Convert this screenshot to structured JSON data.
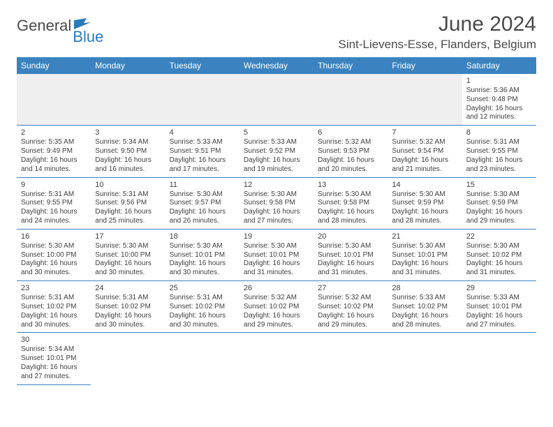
{
  "logo": {
    "general": "General",
    "blue": "Blue"
  },
  "title": "June 2024",
  "location": "Sint-Lievens-Esse, Flanders, Belgium",
  "colors": {
    "header_bg": "#3b83c0",
    "header_text": "#ffffff",
    "border": "#3b83c0",
    "text": "#404040",
    "logo_gray": "#4a4a4a",
    "logo_blue": "#2a7ab8",
    "blank_bg": "#efefef"
  },
  "weekdays": [
    "Sunday",
    "Monday",
    "Tuesday",
    "Wednesday",
    "Thursday",
    "Friday",
    "Saturday"
  ],
  "days": {
    "1": {
      "sunrise": "5:36 AM",
      "sunset": "9:48 PM",
      "daylight": "16 hours and 12 minutes."
    },
    "2": {
      "sunrise": "5:35 AM",
      "sunset": "9:49 PM",
      "daylight": "16 hours and 14 minutes."
    },
    "3": {
      "sunrise": "5:34 AM",
      "sunset": "9:50 PM",
      "daylight": "16 hours and 16 minutes."
    },
    "4": {
      "sunrise": "5:33 AM",
      "sunset": "9:51 PM",
      "daylight": "16 hours and 17 minutes."
    },
    "5": {
      "sunrise": "5:33 AM",
      "sunset": "9:52 PM",
      "daylight": "16 hours and 19 minutes."
    },
    "6": {
      "sunrise": "5:32 AM",
      "sunset": "9:53 PM",
      "daylight": "16 hours and 20 minutes."
    },
    "7": {
      "sunrise": "5:32 AM",
      "sunset": "9:54 PM",
      "daylight": "16 hours and 21 minutes."
    },
    "8": {
      "sunrise": "5:31 AM",
      "sunset": "9:55 PM",
      "daylight": "16 hours and 23 minutes."
    },
    "9": {
      "sunrise": "5:31 AM",
      "sunset": "9:55 PM",
      "daylight": "16 hours and 24 minutes."
    },
    "10": {
      "sunrise": "5:31 AM",
      "sunset": "9:56 PM",
      "daylight": "16 hours and 25 minutes."
    },
    "11": {
      "sunrise": "5:30 AM",
      "sunset": "9:57 PM",
      "daylight": "16 hours and 26 minutes."
    },
    "12": {
      "sunrise": "5:30 AM",
      "sunset": "9:58 PM",
      "daylight": "16 hours and 27 minutes."
    },
    "13": {
      "sunrise": "5:30 AM",
      "sunset": "9:58 PM",
      "daylight": "16 hours and 28 minutes."
    },
    "14": {
      "sunrise": "5:30 AM",
      "sunset": "9:59 PM",
      "daylight": "16 hours and 28 minutes."
    },
    "15": {
      "sunrise": "5:30 AM",
      "sunset": "9:59 PM",
      "daylight": "16 hours and 29 minutes."
    },
    "16": {
      "sunrise": "5:30 AM",
      "sunset": "10:00 PM",
      "daylight": "16 hours and 30 minutes."
    },
    "17": {
      "sunrise": "5:30 AM",
      "sunset": "10:00 PM",
      "daylight": "16 hours and 30 minutes."
    },
    "18": {
      "sunrise": "5:30 AM",
      "sunset": "10:01 PM",
      "daylight": "16 hours and 30 minutes."
    },
    "19": {
      "sunrise": "5:30 AM",
      "sunset": "10:01 PM",
      "daylight": "16 hours and 31 minutes."
    },
    "20": {
      "sunrise": "5:30 AM",
      "sunset": "10:01 PM",
      "daylight": "16 hours and 31 minutes."
    },
    "21": {
      "sunrise": "5:30 AM",
      "sunset": "10:01 PM",
      "daylight": "16 hours and 31 minutes."
    },
    "22": {
      "sunrise": "5:30 AM",
      "sunset": "10:02 PM",
      "daylight": "16 hours and 31 minutes."
    },
    "23": {
      "sunrise": "5:31 AM",
      "sunset": "10:02 PM",
      "daylight": "16 hours and 30 minutes."
    },
    "24": {
      "sunrise": "5:31 AM",
      "sunset": "10:02 PM",
      "daylight": "16 hours and 30 minutes."
    },
    "25": {
      "sunrise": "5:31 AM",
      "sunset": "10:02 PM",
      "daylight": "16 hours and 30 minutes."
    },
    "26": {
      "sunrise": "5:32 AM",
      "sunset": "10:02 PM",
      "daylight": "16 hours and 29 minutes."
    },
    "27": {
      "sunrise": "5:32 AM",
      "sunset": "10:02 PM",
      "daylight": "16 hours and 29 minutes."
    },
    "28": {
      "sunrise": "5:33 AM",
      "sunset": "10:02 PM",
      "daylight": "16 hours and 28 minutes."
    },
    "29": {
      "sunrise": "5:33 AM",
      "sunset": "10:01 PM",
      "daylight": "16 hours and 27 minutes."
    },
    "30": {
      "sunrise": "5:34 AM",
      "sunset": "10:01 PM",
      "daylight": "16 hours and 27 minutes."
    }
  },
  "grid": [
    [
      null,
      null,
      null,
      null,
      null,
      null,
      "1"
    ],
    [
      "2",
      "3",
      "4",
      "5",
      "6",
      "7",
      "8"
    ],
    [
      "9",
      "10",
      "11",
      "12",
      "13",
      "14",
      "15"
    ],
    [
      "16",
      "17",
      "18",
      "19",
      "20",
      "21",
      "22"
    ],
    [
      "23",
      "24",
      "25",
      "26",
      "27",
      "28",
      "29"
    ],
    [
      "30",
      null,
      null,
      null,
      null,
      null,
      null
    ]
  ],
  "labels": {
    "sunrise": "Sunrise:",
    "sunset": "Sunset:",
    "daylight": "Daylight:"
  }
}
